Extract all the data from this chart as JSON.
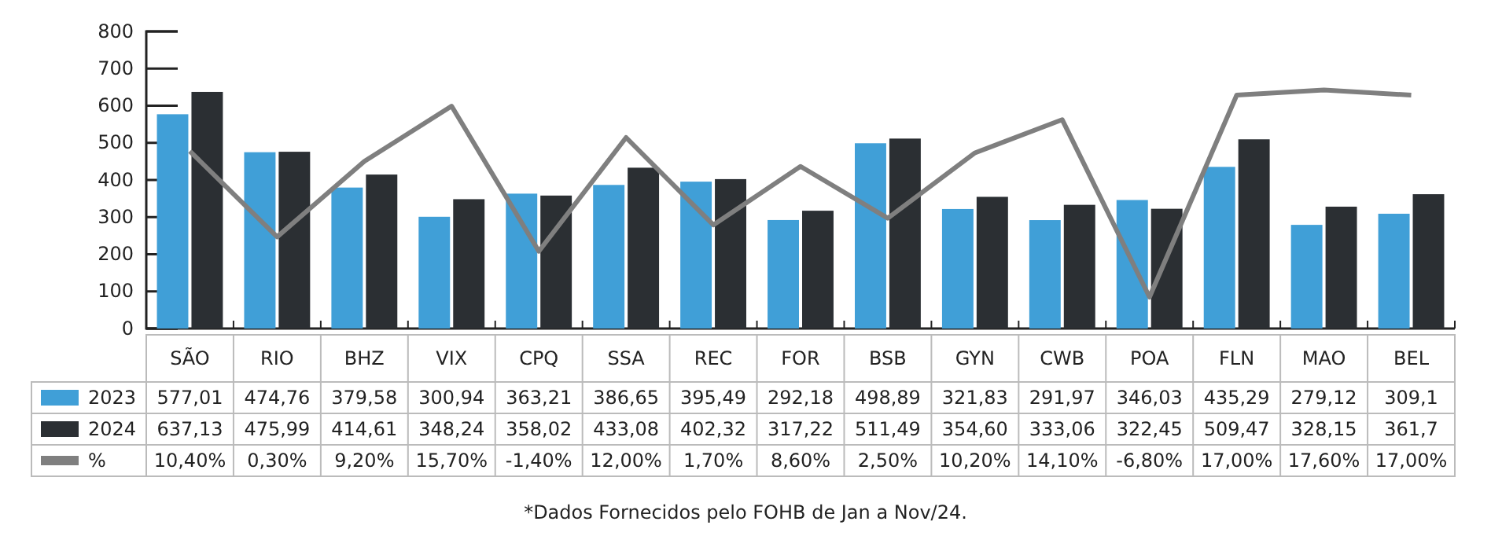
{
  "chart_data": {
    "type": "bar",
    "categories": [
      "SÃO",
      "RIO",
      "BHZ",
      "VIX",
      "CPQ",
      "SSA",
      "REC",
      "FOR",
      "BSB",
      "GYN",
      "CWB",
      "POA",
      "FLN",
      "MAO",
      "BEL"
    ],
    "series": [
      {
        "name": "2023",
        "color": "#409fd7",
        "values": [
          577.01,
          474.76,
          379.58,
          300.94,
          363.21,
          386.65,
          395.49,
          292.18,
          498.89,
          321.83,
          291.97,
          346.03,
          435.29,
          279.12,
          309.1
        ],
        "value_labels": [
          "577,01",
          "474,76",
          "379,58",
          "300,94",
          "363,21",
          "386,65",
          "395,49",
          "292,18",
          "498,89",
          "321,83",
          "291,97",
          "346,03",
          "435,29",
          "279,12",
          "309,1"
        ]
      },
      {
        "name": "2024",
        "color": "#2b2f33",
        "values": [
          637.13,
          475.99,
          414.61,
          348.24,
          358.02,
          433.08,
          402.32,
          317.22,
          511.49,
          354.6,
          333.06,
          322.45,
          509.47,
          328.15,
          361.7
        ],
        "value_labels": [
          "637,13",
          "475,99",
          "414,61",
          "348,24",
          "358,02",
          "433,08",
          "402,32",
          "317,22",
          "511,49",
          "354,60",
          "333,06",
          "322,45",
          "509,47",
          "328,15",
          "361,7"
        ]
      },
      {
        "name": "%",
        "type": "line",
        "axis": "y2",
        "color": "#7f7f7f",
        "values": [
          10.4,
          0.3,
          9.2,
          15.7,
          -1.4,
          12.0,
          1.7,
          8.6,
          2.5,
          10.2,
          14.1,
          -6.8,
          17.0,
          17.6,
          17.0
        ],
        "value_labels": [
          "10,40%",
          "0,30%",
          "9,20%",
          "15,70%",
          "-1,40%",
          "12,00%",
          "1,70%",
          "8,60%",
          "2,50%",
          "10,20%",
          "14,10%",
          "-6,80%",
          "17,00%",
          "17,60%",
          "17,00%"
        ]
      }
    ],
    "ylim": [
      0,
      800
    ],
    "yticks": [
      0,
      100,
      200,
      300,
      400,
      500,
      600,
      700,
      800
    ],
    "y2lim": [
      -10.5,
      24.5
    ],
    "legend": "bottom",
    "annotations": [
      "*Dados Fornecidos pelo FOHB de Jan a Nov/24."
    ]
  }
}
